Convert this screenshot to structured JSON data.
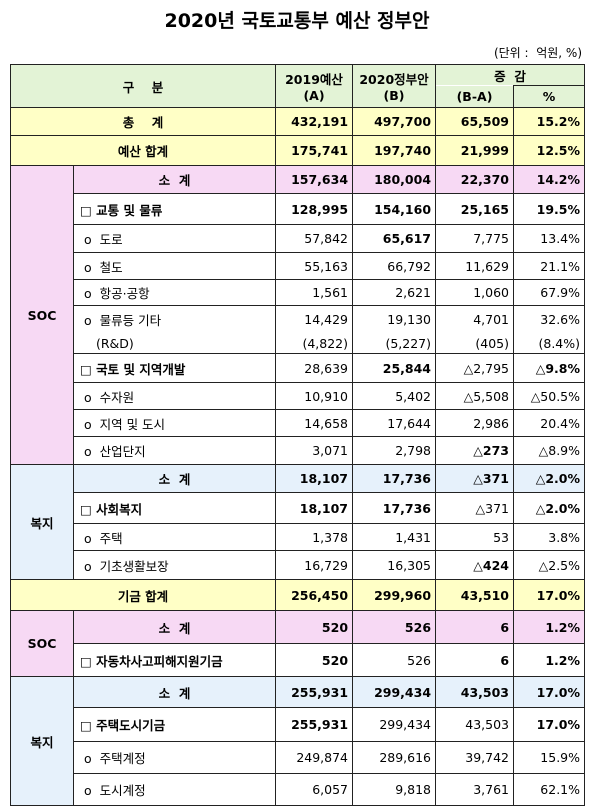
{
  "title": "2020년 국토교통부 예산 정부안",
  "unit": "(단위 :  억원, %)",
  "table": {
    "header": {
      "category": "구    분",
      "col_a": "2019예산",
      "col_a_sub": "(A)",
      "col_b": "2020정부안",
      "col_b_sub": "(B)",
      "diff": "증  감",
      "diff_sub": "(B-A)",
      "pct": "%"
    },
    "groups": [
      "SOC",
      "복지",
      "SOC",
      "복지"
    ],
    "rows": [
      [
        "총    계",
        "432,191",
        "497,700",
        "65,509",
        "15.2%"
      ],
      [
        "예산 합계",
        "175,741",
        "197,740",
        "21,999",
        "12.5%"
      ],
      [
        "소  계",
        "157,634",
        "180,004",
        "22,370",
        "14.2%"
      ],
      [
        "□ 교통 및 물류",
        "128,995",
        "154,160",
        "25,165",
        "19.5%"
      ],
      [
        "o  도로",
        "57,842",
        "65,617",
        "7,775",
        "13.4%"
      ],
      [
        "o  철도",
        "55,163",
        "66,792",
        "11,629",
        "21.1%"
      ],
      [
        "o  항공·공항",
        "1,561",
        "2,621",
        "1,060",
        "67.9%"
      ],
      [
        "o  물류등 기타",
        "14,429",
        "19,130",
        "4,701",
        "32.6%"
      ],
      [
        "(R&D)",
        "(4,822)",
        "(5,227)",
        "(405)",
        "(8.4%)"
      ],
      [
        "□ 국토 및 지역개발",
        "28,639",
        "25,844",
        "△2,795",
        "△9.8%"
      ],
      [
        "o  수자원",
        "10,910",
        "5,402",
        "△5,508",
        "△50.5%"
      ],
      [
        "o  지역 및 도시",
        "14,658",
        "17,644",
        "2,986",
        "20.4%"
      ],
      [
        "o  산업단지",
        "3,071",
        "2,798",
        "△273",
        "△8.9%"
      ],
      [
        "소  계",
        "18,107",
        "17,736",
        "△371",
        "△2.0%"
      ],
      [
        "□ 사회복지",
        "18,107",
        "17,736",
        "△371",
        "△2.0%"
      ],
      [
        "o  주택",
        "1,378",
        "1,431",
        "53",
        "3.8%"
      ],
      [
        "o  기초생활보장",
        "16,729",
        "16,305",
        "△424",
        "△2.5%"
      ],
      [
        "기금 합계",
        "256,450",
        "299,960",
        "43,510",
        "17.0%"
      ],
      [
        "소  계",
        "520",
        "526",
        "6",
        "1.2%"
      ],
      [
        "□ 자동차사고피해지원기금",
        "520",
        "526",
        "6",
        "1.2%"
      ],
      [
        "소  계",
        "255,931",
        "299,434",
        "43,503",
        "17.0%"
      ],
      [
        "□ 주택도시기금",
        "255,931",
        "299,434",
        "43,503",
        "17.0%"
      ],
      [
        "o  주택계정",
        "249,874",
        "289,616",
        "39,742",
        "15.9%"
      ],
      [
        "o  도시계정",
        "6,057",
        "9,818",
        "3,761",
        "62.1%"
      ]
    ]
  }
}
